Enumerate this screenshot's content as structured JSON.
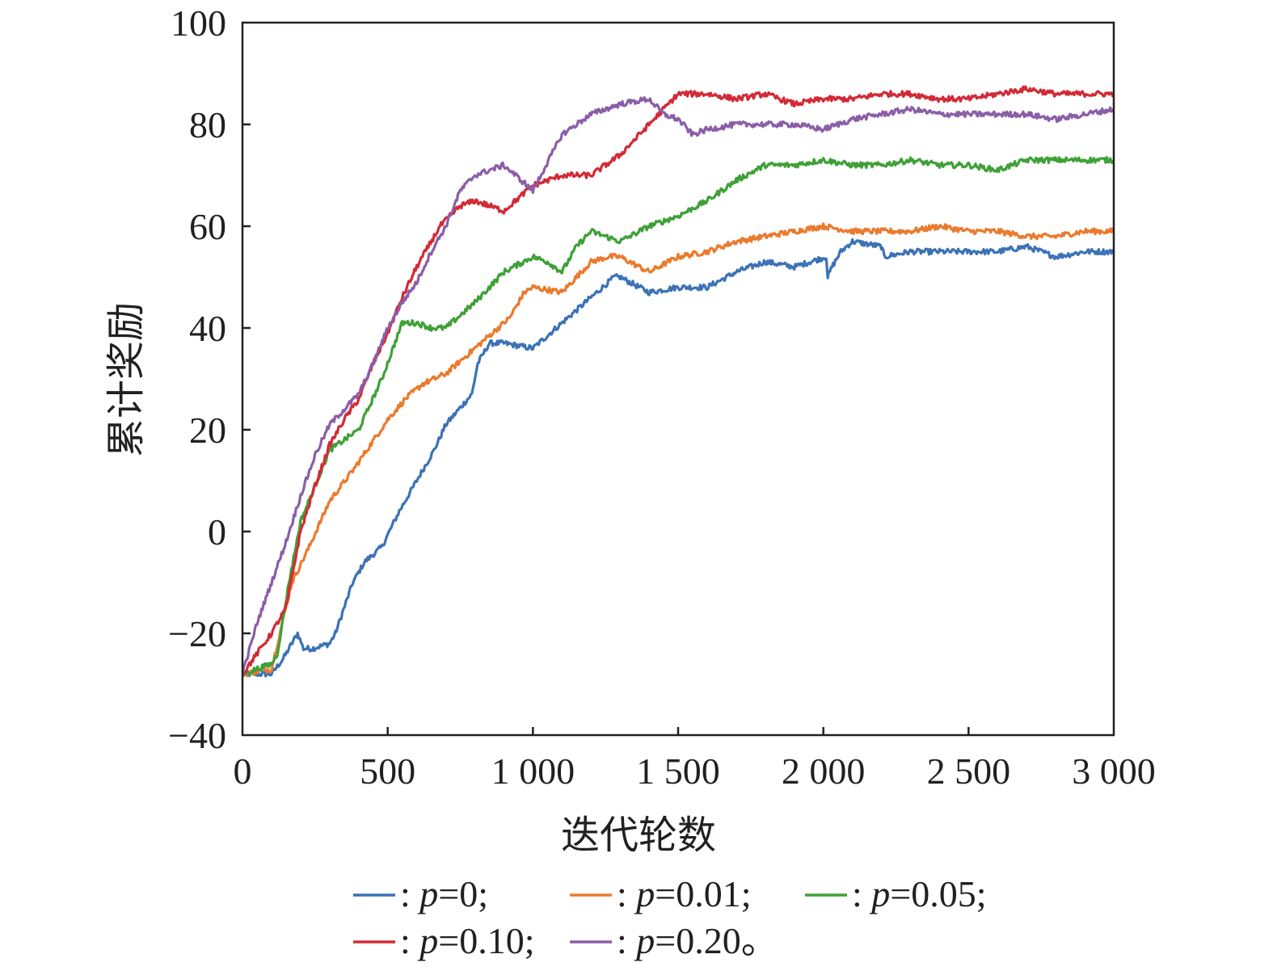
{
  "chart_data": {
    "type": "line",
    "title": "",
    "xlabel": "迭代轮数",
    "ylabel": "累计奖励",
    "xlim": [
      0,
      3000
    ],
    "ylim": [
      -40,
      100
    ],
    "xticks": [
      0,
      500,
      1000,
      1500,
      2000,
      2500,
      3000
    ],
    "xtick_labels": [
      "0",
      "500",
      "1 000",
      "1 500",
      "2 000",
      "2 500",
      "3 000"
    ],
    "yticks": [
      -40,
      -20,
      0,
      20,
      40,
      60,
      80,
      100
    ],
    "ytick_labels": [
      "−40",
      "−20",
      "0",
      "20",
      "40",
      "60",
      "80",
      "100"
    ],
    "grid": false,
    "legend_position": "bottom",
    "series": [
      {
        "name": "p=0",
        "legend_prefix": ":",
        "legend_var": "p",
        "legend_value": "=0;",
        "color": "#3c72b6",
        "points": [
          [
            0,
            -28
          ],
          [
            100,
            -28
          ],
          [
            140,
            -25
          ],
          [
            190,
            -20
          ],
          [
            210,
            -23
          ],
          [
            240,
            -23
          ],
          [
            300,
            -22
          ],
          [
            320,
            -20
          ],
          [
            380,
            -10
          ],
          [
            420,
            -6
          ],
          [
            480,
            -3
          ],
          [
            540,
            4
          ],
          [
            600,
            10
          ],
          [
            660,
            16
          ],
          [
            700,
            21
          ],
          [
            790,
            27
          ],
          [
            810,
            33
          ],
          [
            850,
            37
          ],
          [
            900,
            37
          ],
          [
            1000,
            36
          ],
          [
            1100,
            41
          ],
          [
            1200,
            46
          ],
          [
            1280,
            50
          ],
          [
            1300,
            50
          ],
          [
            1400,
            47
          ],
          [
            1500,
            48
          ],
          [
            1600,
            48
          ],
          [
            1700,
            51
          ],
          [
            1800,
            53
          ],
          [
            1900,
            52
          ],
          [
            2010,
            54
          ],
          [
            2015,
            50
          ],
          [
            2030,
            52
          ],
          [
            2060,
            55
          ],
          [
            2100,
            57
          ],
          [
            2200,
            56
          ],
          [
            2210,
            54
          ],
          [
            2300,
            55
          ],
          [
            2400,
            55
          ],
          [
            2500,
            55
          ],
          [
            2600,
            55
          ],
          [
            2700,
            56
          ],
          [
            2800,
            54
          ],
          [
            2900,
            55
          ],
          [
            3000,
            55
          ]
        ]
      },
      {
        "name": "p=0.01",
        "legend_prefix": ":",
        "legend_var": "p",
        "legend_value": "=0.01;",
        "color": "#eb7a2d",
        "points": [
          [
            0,
            -28
          ],
          [
            100,
            -27
          ],
          [
            170,
            -10
          ],
          [
            230,
            -3
          ],
          [
            300,
            6
          ],
          [
            380,
            12
          ],
          [
            440,
            17
          ],
          [
            500,
            22
          ],
          [
            560,
            26
          ],
          [
            620,
            29
          ],
          [
            700,
            31
          ],
          [
            780,
            35
          ],
          [
            860,
            39
          ],
          [
            920,
            42
          ],
          [
            970,
            47
          ],
          [
            1000,
            48
          ],
          [
            1100,
            47
          ],
          [
            1150,
            50
          ],
          [
            1200,
            53
          ],
          [
            1260,
            54
          ],
          [
            1300,
            54
          ],
          [
            1400,
            51
          ],
          [
            1500,
            54
          ],
          [
            1600,
            55
          ],
          [
            1700,
            57
          ],
          [
            1800,
            58
          ],
          [
            1900,
            59
          ],
          [
            2000,
            60
          ],
          [
            2100,
            59
          ],
          [
            2200,
            59
          ],
          [
            2300,
            59
          ],
          [
            2400,
            60
          ],
          [
            2500,
            59
          ],
          [
            2600,
            59
          ],
          [
            2700,
            58
          ],
          [
            2800,
            58
          ],
          [
            2900,
            59
          ],
          [
            3000,
            59
          ]
        ]
      },
      {
        "name": "p=0.05",
        "legend_prefix": ":",
        "legend_var": "p",
        "legend_value": "=0.05;",
        "color": "#3fa037",
        "points": [
          [
            0,
            -28
          ],
          [
            100,
            -26
          ],
          [
            120,
            -24
          ],
          [
            160,
            -10
          ],
          [
            200,
            2
          ],
          [
            250,
            9
          ],
          [
            300,
            16
          ],
          [
            400,
            20
          ],
          [
            480,
            30
          ],
          [
            550,
            41
          ],
          [
            600,
            41
          ],
          [
            650,
            40
          ],
          [
            700,
            40
          ],
          [
            800,
            45
          ],
          [
            900,
            51
          ],
          [
            1000,
            54
          ],
          [
            1050,
            53
          ],
          [
            1100,
            51
          ],
          [
            1150,
            56
          ],
          [
            1200,
            59
          ],
          [
            1300,
            57
          ],
          [
            1400,
            60
          ],
          [
            1500,
            62
          ],
          [
            1600,
            65
          ],
          [
            1700,
            69
          ],
          [
            1800,
            72
          ],
          [
            1900,
            72
          ],
          [
            2000,
            73
          ],
          [
            2100,
            72
          ],
          [
            2200,
            72
          ],
          [
            2300,
            73
          ],
          [
            2400,
            72
          ],
          [
            2500,
            72
          ],
          [
            2600,
            71
          ],
          [
            2700,
            73
          ],
          [
            2800,
            73
          ],
          [
            2900,
            73
          ],
          [
            3000,
            73
          ]
        ]
      },
      {
        "name": "p=0.10",
        "legend_prefix": ":",
        "legend_var": "p",
        "legend_value": "=0.10;",
        "color": "#d32a36",
        "points": [
          [
            0,
            -28
          ],
          [
            100,
            -20
          ],
          [
            150,
            -15
          ],
          [
            200,
            0
          ],
          [
            250,
            9
          ],
          [
            300,
            17
          ],
          [
            350,
            22
          ],
          [
            400,
            26
          ],
          [
            450,
            33
          ],
          [
            500,
            39
          ],
          [
            550,
            46
          ],
          [
            600,
            52
          ],
          [
            680,
            60
          ],
          [
            750,
            64
          ],
          [
            800,
            65
          ],
          [
            900,
            63
          ],
          [
            1000,
            68
          ],
          [
            1100,
            70
          ],
          [
            1200,
            70
          ],
          [
            1300,
            74
          ],
          [
            1400,
            80
          ],
          [
            1500,
            86
          ],
          [
            1600,
            86
          ],
          [
            1700,
            85
          ],
          [
            1800,
            86
          ],
          [
            1900,
            84
          ],
          [
            2000,
            85
          ],
          [
            2100,
            85
          ],
          [
            2200,
            86
          ],
          [
            2300,
            86
          ],
          [
            2400,
            85
          ],
          [
            2500,
            85
          ],
          [
            2600,
            86
          ],
          [
            2700,
            87
          ],
          [
            2800,
            86
          ],
          [
            2900,
            86
          ],
          [
            3000,
            86
          ]
        ]
      },
      {
        "name": "p=0.20",
        "legend_prefix": ":",
        "legend_var": "p",
        "legend_value": "=0.20。",
        "color": "#8b5ea8",
        "points": [
          [
            0,
            -28
          ],
          [
            50,
            -18
          ],
          [
            100,
            -10
          ],
          [
            150,
            -2
          ],
          [
            200,
            7
          ],
          [
            250,
            15
          ],
          [
            300,
            21
          ],
          [
            350,
            24
          ],
          [
            400,
            27
          ],
          [
            450,
            33
          ],
          [
            500,
            40
          ],
          [
            550,
            45
          ],
          [
            600,
            49
          ],
          [
            650,
            55
          ],
          [
            700,
            60
          ],
          [
            750,
            67
          ],
          [
            800,
            70
          ],
          [
            900,
            72
          ],
          [
            1000,
            67
          ],
          [
            1100,
            78
          ],
          [
            1200,
            82
          ],
          [
            1300,
            84
          ],
          [
            1400,
            85
          ],
          [
            1450,
            82
          ],
          [
            1500,
            81
          ],
          [
            1550,
            78
          ],
          [
            1600,
            79
          ],
          [
            1700,
            80
          ],
          [
            1800,
            80
          ],
          [
            1900,
            80
          ],
          [
            2000,
            79
          ],
          [
            2100,
            81
          ],
          [
            2200,
            82
          ],
          [
            2300,
            83
          ],
          [
            2400,
            82
          ],
          [
            2500,
            82
          ],
          [
            2600,
            82
          ],
          [
            2700,
            82
          ],
          [
            2800,
            81
          ],
          [
            2900,
            82
          ],
          [
            3000,
            83
          ]
        ]
      }
    ]
  }
}
